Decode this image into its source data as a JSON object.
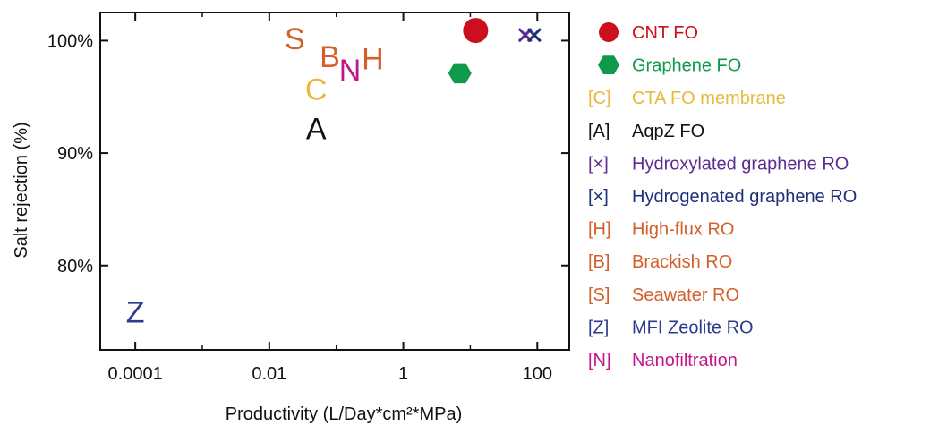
{
  "chart_data": {
    "type": "scatter",
    "title": "",
    "xlabel": "Productivity (L/Day*cm²*MPa)",
    "ylabel": "Salt rejection (%)",
    "x_scale": "log",
    "xlim": [
      3e-05,
      300
    ],
    "ylim": [
      72.5,
      102.5
    ],
    "x_ticks": [
      {
        "value": 0.0001,
        "label": "0.0001"
      },
      {
        "value": 0.01,
        "label": "0.01"
      },
      {
        "value": 1,
        "label": "1"
      },
      {
        "value": 100,
        "label": "100"
      }
    ],
    "y_ticks": [
      {
        "value": 80,
        "label": "80%"
      },
      {
        "value": 90,
        "label": "90%"
      },
      {
        "value": 100,
        "label": "100%"
      }
    ],
    "grid": false,
    "legend_position": "right",
    "series": [
      {
        "name": "CNT FO",
        "legend_prefix": "",
        "marker": "circle",
        "color": "#cc0f1e",
        "points": [
          {
            "x": 12,
            "y": 100.9
          }
        ]
      },
      {
        "name": "Graphene FO",
        "legend_prefix": "",
        "marker": "hexagon",
        "color": "#0d9a4a",
        "points": [
          {
            "x": 7,
            "y": 97.1
          }
        ]
      },
      {
        "name": "CTA FO membrane",
        "legend_prefix": "[C]",
        "marker": "C",
        "color": "#e8b93a",
        "points": [
          {
            "x": 0.05,
            "y": 95.7
          }
        ]
      },
      {
        "name": "AqpZ FO",
        "legend_prefix": "[A]",
        "marker": "A",
        "color": "#111111",
        "points": [
          {
            "x": 0.05,
            "y": 92.2
          }
        ]
      },
      {
        "name": "Hydroxylated graphene RO",
        "legend_prefix": "[×]",
        "marker": "×",
        "color": "#5b2d91",
        "points": [
          {
            "x": 66,
            "y": 100.5
          }
        ]
      },
      {
        "name": "Hydrogenated graphene RO",
        "legend_prefix": "[×]",
        "marker": "×",
        "color": "#1f2f7a",
        "points": [
          {
            "x": 90,
            "y": 100.5
          }
        ]
      },
      {
        "name": "High-flux RO",
        "legend_prefix": "[H]",
        "marker": "H",
        "color": "#d35f2b",
        "points": [
          {
            "x": 0.35,
            "y": 98.4
          }
        ]
      },
      {
        "name": "Brackish RO",
        "legend_prefix": "[B]",
        "marker": "B",
        "color": "#d35f2b",
        "points": [
          {
            "x": 0.08,
            "y": 98.6
          }
        ]
      },
      {
        "name": "Seawater RO",
        "legend_prefix": "[S]",
        "marker": "S",
        "color": "#d35f2b",
        "points": [
          {
            "x": 0.024,
            "y": 100.2
          }
        ]
      },
      {
        "name": "MFI Zeolite RO",
        "legend_prefix": "[Z]",
        "marker": "Z",
        "color": "#2a3b8f",
        "points": [
          {
            "x": 0.0001,
            "y": 75.9
          }
        ]
      },
      {
        "name": "Nanofiltration",
        "legend_prefix": "[N]",
        "marker": "N",
        "color": "#c2168a",
        "points": [
          {
            "x": 0.16,
            "y": 97.4
          }
        ]
      }
    ]
  }
}
